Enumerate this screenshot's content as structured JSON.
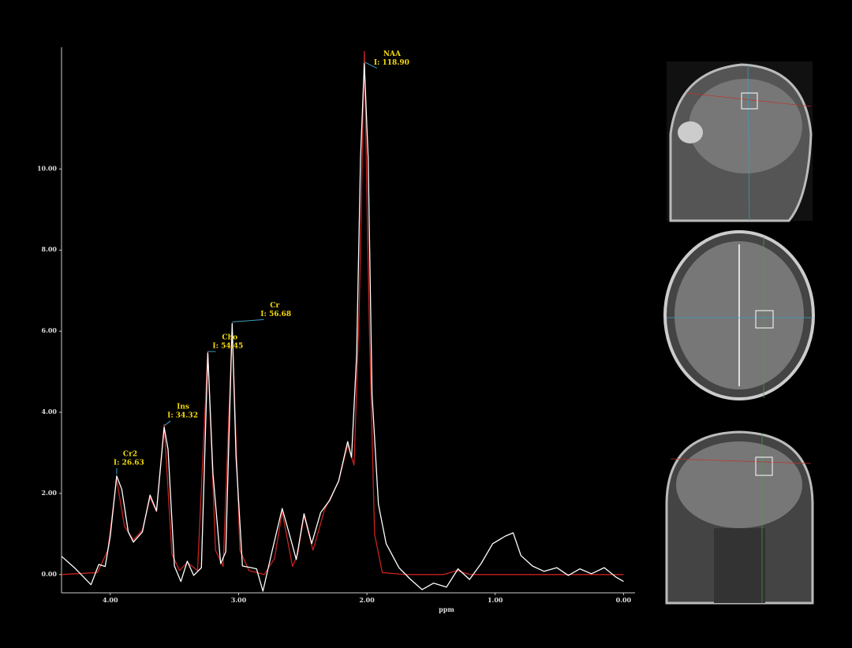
{
  "chart_data": {
    "type": "line",
    "xlabel": "ppm",
    "xlim": [
      4.38,
      -0.09
    ],
    "ylim": [
      -0.45,
      13
    ],
    "xticks": [
      {
        "value": 4,
        "label": "4.00"
      },
      {
        "value": 3,
        "label": "3.00"
      },
      {
        "value": 2,
        "label": "2.00"
      },
      {
        "value": 1,
        "label": "1.00"
      },
      {
        "value": 0,
        "label": "0.00"
      }
    ],
    "yticks": [
      {
        "value": 0,
        "label": "0.00"
      },
      {
        "value": 2,
        "label": "2.00"
      },
      {
        "value": 4,
        "label": "4.00"
      },
      {
        "value": 6,
        "label": "6.00"
      },
      {
        "value": 8,
        "label": "8.00"
      },
      {
        "value": 10,
        "label": "10.00"
      }
    ],
    "series": [
      {
        "color": "#ffffff",
        "x": [
          4.38,
          4.28,
          4.15,
          4.09,
          4.04,
          4.0,
          3.95,
          3.91,
          3.86,
          3.82,
          3.75,
          3.69,
          3.64,
          3.58,
          3.55,
          3.5,
          3.45,
          3.4,
          3.35,
          3.29,
          3.24,
          3.2,
          3.14,
          3.1,
          3.05,
          3.02,
          2.97,
          2.9,
          2.86,
          2.81,
          2.74,
          2.66,
          2.6,
          2.55,
          2.49,
          2.43,
          2.36,
          2.29,
          2.22,
          2.15,
          2.12,
          2.08,
          2.05,
          2.02,
          1.99,
          1.96,
          1.91,
          1.85,
          1.75,
          1.66,
          1.57,
          1.48,
          1.38,
          1.29,
          1.2,
          1.11,
          1.02,
          0.92,
          0.86,
          0.8,
          0.71,
          0.62,
          0.52,
          0.43,
          0.34,
          0.25,
          0.15,
          0.06,
          0.0
        ],
        "values": [
          0.45,
          0.17,
          -0.25,
          0.25,
          0.2,
          0.95,
          2.43,
          2.1,
          1.05,
          0.8,
          1.05,
          1.96,
          1.57,
          3.63,
          3.09,
          0.21,
          -0.17,
          0.33,
          -0.02,
          0.17,
          5.46,
          2.5,
          0.27,
          0.56,
          6.19,
          2.9,
          0.21,
          0.17,
          0.14,
          -0.41,
          0.56,
          1.63,
          0.95,
          0.37,
          1.5,
          0.76,
          1.53,
          1.83,
          2.31,
          3.28,
          2.89,
          5.42,
          10.27,
          12.6,
          10.27,
          4.45,
          1.73,
          0.76,
          0.17,
          -0.12,
          -0.37,
          -0.21,
          -0.31,
          0.14,
          -0.12,
          0.27,
          0.76,
          0.95,
          1.03,
          0.47,
          0.21,
          0.08,
          0.17,
          -0.02,
          0.14,
          0.02,
          0.17,
          -0.06,
          -0.17
        ]
      },
      {
        "color": "#c8231e",
        "x": [
          4.38,
          4.1,
          4.02,
          3.95,
          3.89,
          3.82,
          3.75,
          3.69,
          3.64,
          3.58,
          3.52,
          3.46,
          3.4,
          3.32,
          3.24,
          3.18,
          3.12,
          3.05,
          2.99,
          2.92,
          2.8,
          2.72,
          2.66,
          2.58,
          2.54,
          2.49,
          2.42,
          2.33,
          2.22,
          2.15,
          2.1,
          2.06,
          2.02,
          1.98,
          1.94,
          1.88,
          1.7,
          1.4,
          1.3,
          1.2,
          0.8,
          0.4,
          0.0
        ],
        "values": [
          0.0,
          0.05,
          0.6,
          2.35,
          1.2,
          0.85,
          1.1,
          1.9,
          1.55,
          3.7,
          0.5,
          0.1,
          0.3,
          0.1,
          5.5,
          0.6,
          0.2,
          6.1,
          0.6,
          0.1,
          0.0,
          0.4,
          1.55,
          0.2,
          0.5,
          1.45,
          0.6,
          1.6,
          2.3,
          3.2,
          2.7,
          6.5,
          12.9,
          6.0,
          1.0,
          0.05,
          0.0,
          0.0,
          0.1,
          0.0,
          0.0,
          0.0,
          0.0
        ]
      }
    ],
    "annotations": [
      {
        "name": "Cr2",
        "label": "I: 26.63",
        "x": 3.95,
        "y": 2.43
      },
      {
        "name": "Ins",
        "label": "I: 34.32",
        "x": 3.58,
        "y": 3.63
      },
      {
        "name": "Cho",
        "label": "I: 54.45",
        "x": 3.24,
        "y": 5.46
      },
      {
        "name": "Cr",
        "label": "I: 56.68",
        "x": 3.05,
        "y": 6.19
      },
      {
        "name": "NAA",
        "label": "I: 118.90",
        "x": 2.02,
        "y": 12.6
      }
    ]
  }
}
